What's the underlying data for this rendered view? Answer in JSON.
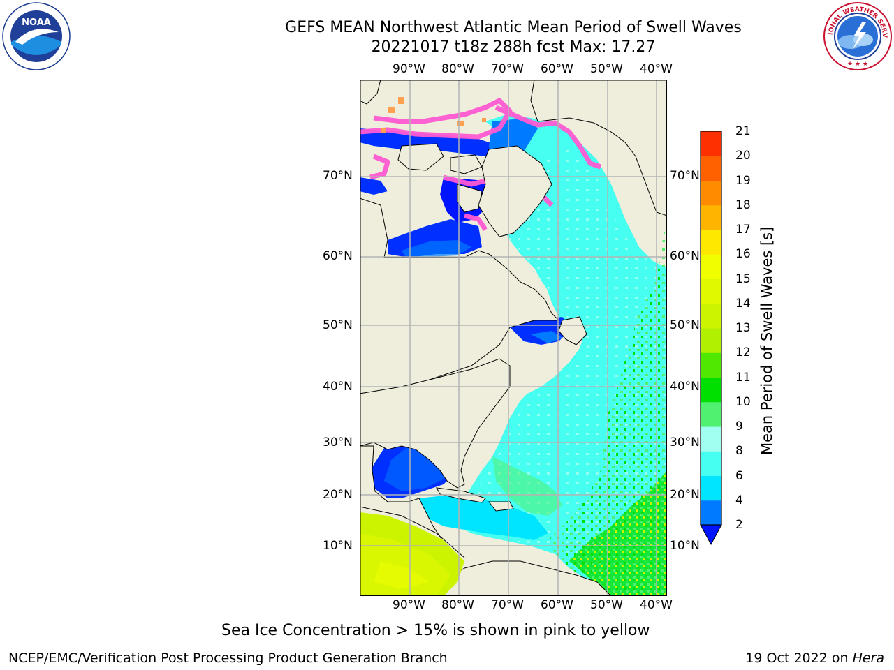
{
  "header": {
    "title": "GEFS MEAN Northwest Atlantic Mean Period of Swell Waves",
    "subtitle": "20221017 t18z 288h fcst   Max: 17.27"
  },
  "logos": {
    "noaa_text": "NOAA",
    "noaa_ring": "NATIONAL OCEANIC AND ATMOSPHERIC ADMINISTRATION · U.S. DEPARTMENT OF COMMERCE",
    "nws_ring": "NATIONAL WEATHER SERVICE"
  },
  "map": {
    "lon_labels": [
      "90°W",
      "80°W",
      "70°W",
      "60°W",
      "50°W",
      "40°W"
    ],
    "lat_labels": [
      "70°N",
      "60°N",
      "50°N",
      "40°N",
      "30°N",
      "20°N",
      "10°N"
    ],
    "colors": {
      "land": "#efeedc",
      "grid": "#b3b3b3",
      "coast": "#000000",
      "ice_pink": "#ff5ad2",
      "ice_orange": "#ffa050"
    }
  },
  "colorbar": {
    "label": "Mean Period of Swell Waves [s]",
    "ticks": [
      "2",
      "4",
      "6",
      "8",
      "9",
      "10",
      "11",
      "12",
      "13",
      "14",
      "15",
      "16",
      "17",
      "18",
      "19",
      "20",
      "21"
    ],
    "under_color": "#0014ff",
    "colors": [
      "#007bff",
      "#00e5ff",
      "#47fff0",
      "#a0fff0",
      "#50f070",
      "#00e000",
      "#50e800",
      "#b0f000",
      "#ccf400",
      "#e0f800",
      "#f0ff00",
      "#ffe800",
      "#ffb400",
      "#ff8c00",
      "#ff6000",
      "#ff3000",
      "#ff0000"
    ]
  },
  "notes": {
    "sea_ice": "Sea Ice Concentration > 15% is shown in pink to yellow"
  },
  "footer": {
    "left": "NCEP/EMC/Verification Post Processing Product Generation Branch",
    "right_prefix": "19 Oct 2022 on ",
    "right_machine": "Hera"
  }
}
